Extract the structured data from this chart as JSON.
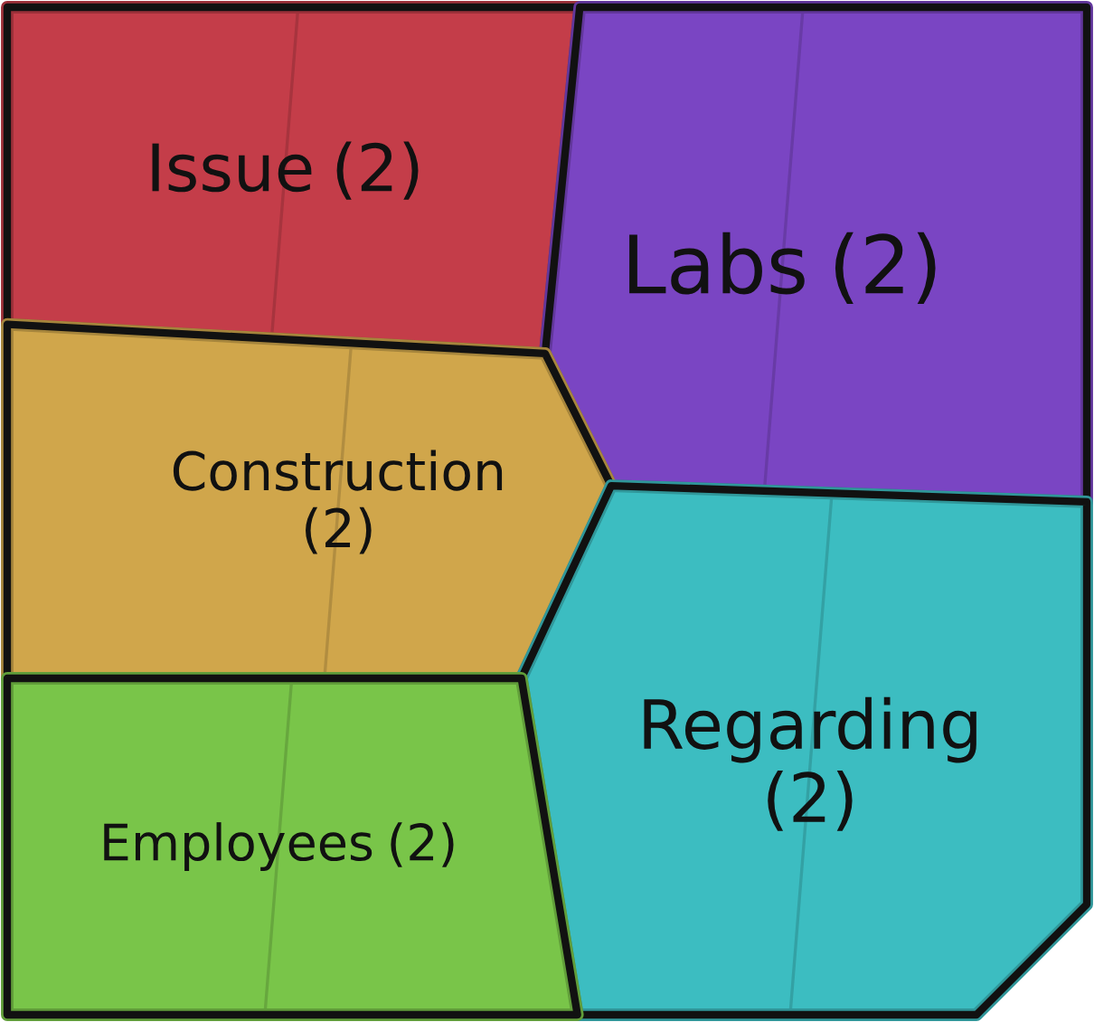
{
  "chart_data": {
    "type": "other",
    "categories": [
      "Issue",
      "Labs",
      "Construction",
      "Regarding",
      "Employees"
    ],
    "values": [
      2,
      2,
      2,
      2,
      2
    ],
    "colors": [
      "#c43d49",
      "#7a45c3",
      "#d0a64b",
      "#3cbdc1",
      "#79c549"
    ],
    "value_labels": [
      "(2)",
      "(2)",
      "(2)",
      "(2)",
      "(2)"
    ]
  }
}
